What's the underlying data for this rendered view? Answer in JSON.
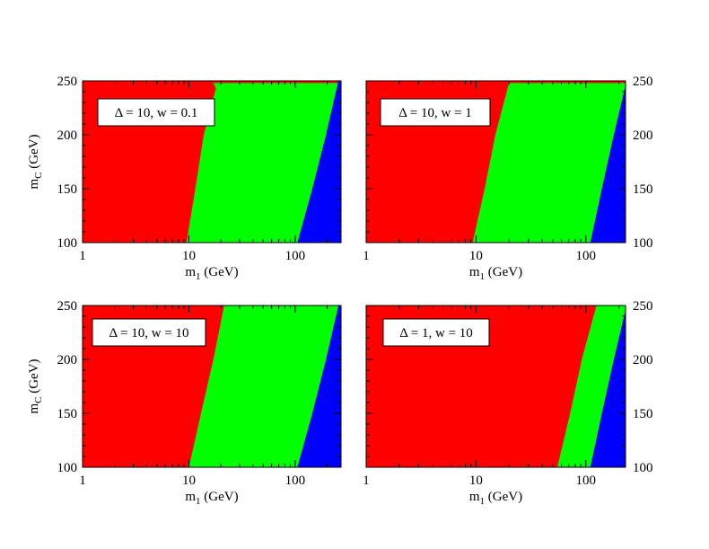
{
  "chart_data": [
    {
      "type": "area",
      "annotation": "Δ = 10,  w = 0.1",
      "xlabel_main": "m",
      "xlabel_sub": "1",
      "xlabel_unit": " (GeV)",
      "ylabel_main": "m",
      "ylabel_sub": "C",
      "ylabel_unit": " (GeV)",
      "x_scale": "log",
      "xlim": [
        1,
        270
      ],
      "ylim": [
        100,
        250
      ],
      "x_ticks": [
        1,
        10,
        100
      ],
      "x_tick_labels": [
        "1",
        "10",
        "100"
      ],
      "y_ticks": [
        100,
        150,
        200,
        250
      ],
      "y_tick_labels": [
        "100",
        "150",
        "200",
        "250"
      ],
      "y_tick_side": "left",
      "show_xlabel": true,
      "show_ylabel": true,
      "regions": [
        {
          "color": "#ff0000",
          "boundary_left": null
        },
        {
          "color": "#00ff00",
          "boundary_left": [
            [
              100,
              9.5
            ],
            [
              150,
              11.5
            ],
            [
              200,
              13.8
            ],
            [
              230,
              16.5
            ],
            [
              243,
              18
            ],
            [
              248,
              17
            ]
          ]
        },
        {
          "color": "#0000ff",
          "boundary_left": [
            [
              100,
              105
            ],
            [
              150,
              145
            ],
            [
              200,
              195
            ],
            [
              250,
              255
            ]
          ]
        }
      ]
    },
    {
      "type": "area",
      "annotation": "Δ = 10,  w = 1",
      "xlabel_main": "m",
      "xlabel_sub": "1",
      "xlabel_unit": " (GeV)",
      "x_scale": "log",
      "xlim": [
        1,
        230
      ],
      "ylim": [
        100,
        250
      ],
      "x_ticks": [
        1,
        10,
        100
      ],
      "x_tick_labels": [
        "1",
        "10",
        "100"
      ],
      "y_ticks": [
        100,
        150,
        200,
        250
      ],
      "y_tick_labels": [
        "100",
        "150",
        "200",
        "250"
      ],
      "y_tick_side": "right",
      "show_xlabel": true,
      "show_ylabel": false,
      "regions": [
        {
          "color": "#ff0000",
          "boundary_left": null
        },
        {
          "color": "#00ff00",
          "boundary_left": [
            [
              100,
              9.3
            ],
            [
              150,
              12
            ],
            [
              200,
              15
            ],
            [
              235,
              18.5
            ],
            [
              248,
              20
            ]
          ]
        },
        {
          "color": "#0000ff",
          "boundary_left": [
            [
              100,
              110
            ],
            [
              150,
              140
            ],
            [
              200,
              180
            ],
            [
              250,
              235
            ]
          ]
        }
      ]
    },
    {
      "type": "area",
      "annotation": "Δ = 10,  w = 10",
      "xlabel_main": "m",
      "xlabel_sub": "1",
      "xlabel_unit": " (GeV)",
      "ylabel_main": "m",
      "ylabel_sub": "C",
      "ylabel_unit": " (GeV)",
      "x_scale": "log",
      "xlim": [
        1,
        270
      ],
      "ylim": [
        100,
        250
      ],
      "x_ticks": [
        1,
        10,
        100
      ],
      "x_tick_labels": [
        "1",
        "10",
        "100"
      ],
      "y_ticks": [
        100,
        150,
        200,
        250
      ],
      "y_tick_labels": [
        "100",
        "150",
        "200",
        "250"
      ],
      "y_tick_side": "left",
      "show_xlabel": true,
      "show_ylabel": true,
      "regions": [
        {
          "color": "#ff0000",
          "boundary_left": null
        },
        {
          "color": "#00ff00",
          "boundary_left": [
            [
              100,
              10
            ],
            [
              150,
              13
            ],
            [
              200,
              17
            ],
            [
              250,
              21.5
            ]
          ]
        },
        {
          "color": "#0000ff",
          "boundary_left": [
            [
              100,
              105
            ],
            [
              150,
              145
            ],
            [
              200,
              195
            ],
            [
              250,
              255
            ]
          ]
        }
      ]
    },
    {
      "type": "area",
      "annotation": "Δ = 1,  w = 10",
      "xlabel_main": "m",
      "xlabel_sub": "1",
      "xlabel_unit": " (GeV)",
      "x_scale": "log",
      "xlim": [
        1,
        230
      ],
      "ylim": [
        100,
        250
      ],
      "x_ticks": [
        1,
        10,
        100
      ],
      "x_tick_labels": [
        "1",
        "10",
        "100"
      ],
      "y_ticks": [
        100,
        150,
        200,
        250
      ],
      "y_tick_labels": [
        "100",
        "150",
        "200",
        "250"
      ],
      "y_tick_side": "right",
      "show_xlabel": true,
      "show_ylabel": false,
      "regions": [
        {
          "color": "#ff0000",
          "boundary_left": null
        },
        {
          "color": "#00ff00",
          "boundary_left": [
            [
              100,
              55
            ],
            [
              150,
              72
            ],
            [
              200,
              92
            ],
            [
              250,
              125
            ]
          ]
        },
        {
          "color": "#0000ff",
          "boundary_left": [
            [
              100,
              110
            ],
            [
              150,
              140
            ],
            [
              200,
              180
            ],
            [
              250,
              235
            ]
          ]
        }
      ]
    }
  ]
}
